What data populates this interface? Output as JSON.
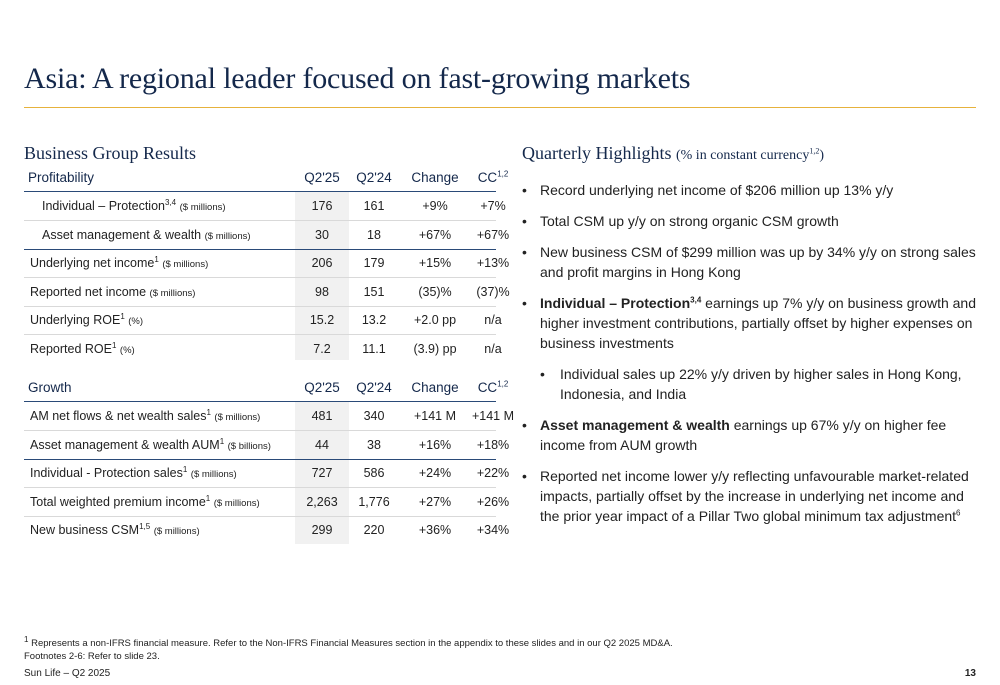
{
  "title": "Asia: A regional leader focused on fast-growing markets",
  "left_heading": "Business Group Results",
  "right_heading": "Quarterly Highlights",
  "right_heading_sub": "(% in constant currency",
  "right_heading_sub_sup": "1,2",
  "right_heading_sub_end": ")",
  "profitability": {
    "label": "Profitability",
    "columns": [
      "Q2'25",
      "Q2'24",
      "Change",
      "CC"
    ],
    "cc_sup": "1,2",
    "rows": [
      {
        "label": "Individual – Protection",
        "sup": "3,4",
        "unit": "($ millions)",
        "v": [
          "176",
          "161",
          "+9%",
          "+7%"
        ]
      },
      {
        "label": "Asset management & wealth",
        "sup": "",
        "unit": "($ millions)",
        "v": [
          "30",
          "18",
          "+67%",
          "+67%"
        ]
      },
      {
        "label": "Underlying net income",
        "sup": "1",
        "unit": "($ millions)",
        "v": [
          "206",
          "179",
          "+15%",
          "+13%"
        ]
      },
      {
        "label": "Reported net income",
        "sup": "",
        "unit": "($ millions)",
        "v": [
          "98",
          "151",
          "(35)%",
          "(37)%"
        ]
      },
      {
        "label": "Underlying ROE",
        "sup": "1",
        "unit": "(%)",
        "v": [
          "15.2",
          "13.2",
          "+2.0 pp",
          "n/a"
        ]
      },
      {
        "label": "Reported ROE",
        "sup": "1",
        "unit": "(%)",
        "v": [
          "7.2",
          "11.1",
          "(3.9) pp",
          "n/a"
        ]
      }
    ]
  },
  "growth": {
    "label": "Growth",
    "columns": [
      "Q2'25",
      "Q2'24",
      "Change",
      "CC"
    ],
    "cc_sup": "1,2",
    "rows": [
      {
        "label": "AM net flows & net wealth sales",
        "sup": "1",
        "unit": "($ millions)",
        "v": [
          "481",
          "340",
          "+141 M",
          "+141 M"
        ]
      },
      {
        "label": "Asset management & wealth AUM",
        "sup": "1",
        "unit": "($ billions)",
        "v": [
          "44",
          "38",
          "+16%",
          "+18%"
        ]
      },
      {
        "label": "Individual - Protection sales",
        "sup": "1",
        "unit": "($ millions)",
        "v": [
          "727",
          "586",
          "+24%",
          "+22%"
        ]
      },
      {
        "label": "Total weighted premium income",
        "sup": "1",
        "unit": "($ millions)",
        "v": [
          "2,263",
          "1,776",
          "+27%",
          "+26%"
        ]
      },
      {
        "label": "New business CSM",
        "sup": "1,5",
        "unit": "($ millions)",
        "v": [
          "299",
          "220",
          "+36%",
          "+34%"
        ]
      }
    ]
  },
  "highlights": {
    "b1": "Record underlying net income of $206 million up 13% y/y",
    "b2": "Total CSM up y/y on strong organic CSM growth",
    "b3": "New business CSM of $299 million was up by 34% y/y on strong sales and profit margins in Hong Kong",
    "b4_bold": "Individual – Protection",
    "b4_sup": "3,4",
    "b4_text": " earnings up 7% y/y on business growth and higher investment contributions, partially offset by higher expenses on business investments",
    "b5": "Individual sales up 22% y/y driven by higher sales in Hong Kong, Indonesia, and India",
    "b6_bold": "Asset management & wealth",
    "b6_text": " earnings up 67% y/y on higher fee income from AUM growth",
    "b7": "Reported net income lower y/y reflecting unfavourable market-related impacts, partially offset by the increase in underlying net income and the prior year impact of a Pillar Two global minimum tax adjustment",
    "b7_sup": "6",
    "bullet": "•"
  },
  "footnote_sup": "1",
  "footnote1": " Represents a non-IFRS financial measure. Refer to the Non-IFRS Financial Measures section in the appendix to these slides and in our Q2 2025 MD&A.",
  "footnote2": "Footnotes 2-6: Refer to slide 23.",
  "footer_left": "Sun Life – Q2 2025",
  "page_number": "13"
}
